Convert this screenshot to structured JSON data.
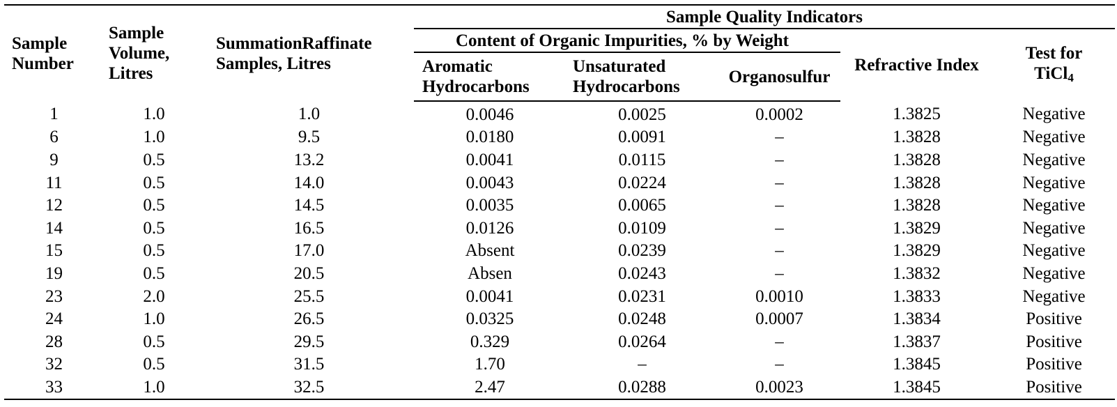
{
  "table": {
    "headers": {
      "sample_number": "Sample Number",
      "sample_volume": "Sample Volume, Litres",
      "summation": "SummationRaffinate Samples, Litres",
      "quality_indicators": "Sample Quality Indicators",
      "organic_impurities": "Content of Organic Impurities, % by Weight",
      "aromatic": "Aromatic Hydrocarbons",
      "unsaturated": "Unsaturated Hydrocarbons",
      "organosulfur": "Organosulfur",
      "refractive": "Refractive Index",
      "test_prefix": "Test for",
      "test_chem": "TiCl",
      "test_sub": "4"
    },
    "rows": [
      {
        "num": "1",
        "vol": "1.0",
        "sum": "1.0",
        "aro": "0.0046",
        "uns": "0.0025",
        "org": "0.0002",
        "ref": "1.3825",
        "test": "Negative"
      },
      {
        "num": "6",
        "vol": "1.0",
        "sum": "9.5",
        "aro": "0.0180",
        "uns": "0.0091",
        "org": "–",
        "ref": "1.3828",
        "test": "Negative"
      },
      {
        "num": "9",
        "vol": "0.5",
        "sum": "13.2",
        "aro": "0.0041",
        "uns": "0.0115",
        "org": "–",
        "ref": "1.3828",
        "test": "Negative"
      },
      {
        "num": "11",
        "vol": "0.5",
        "sum": "14.0",
        "aro": "0.0043",
        "uns": "0.0224",
        "org": "–",
        "ref": "1.3828",
        "test": "Negative"
      },
      {
        "num": "12",
        "vol": "0.5",
        "sum": "14.5",
        "aro": "0.0035",
        "uns": "0.0065",
        "org": "–",
        "ref": "1.3828",
        "test": "Negative"
      },
      {
        "num": "14",
        "vol": "0.5",
        "sum": "16.5",
        "aro": "0.0126",
        "uns": "0.0109",
        "org": "–",
        "ref": "1.3829",
        "test": "Negative"
      },
      {
        "num": "15",
        "vol": "0.5",
        "sum": "17.0",
        "aro": "Absent",
        "uns": "0.0239",
        "org": "–",
        "ref": "1.3829",
        "test": "Negative"
      },
      {
        "num": "19",
        "vol": "0.5",
        "sum": "20.5",
        "aro": "Absen",
        "uns": "0.0243",
        "org": "–",
        "ref": "1.3832",
        "test": "Negative"
      },
      {
        "num": "23",
        "vol": "2.0",
        "sum": "25.5",
        "aro": "0.0041",
        "uns": "0.0231",
        "org": "0.0010",
        "ref": "1.3833",
        "test": "Negative"
      },
      {
        "num": "24",
        "vol": "1.0",
        "sum": "26.5",
        "aro": "0.0325",
        "uns": "0.0248",
        "org": "0.0007",
        "ref": "1.3834",
        "test": "Positive"
      },
      {
        "num": "28",
        "vol": "0.5",
        "sum": "29.5",
        "aro": "0.329",
        "uns": "0.0264",
        "org": "–",
        "ref": "1.3837",
        "test": "Positive"
      },
      {
        "num": "32",
        "vol": "0.5",
        "sum": "31.5",
        "aro": "1.70",
        "uns": "–",
        "org": "–",
        "ref": "1.3845",
        "test": "Positive"
      },
      {
        "num": "33",
        "vol": "1.0",
        "sum": "32.5",
        "aro": "2.47",
        "uns": "0.0288",
        "org": "0.0023",
        "ref": "1.3845",
        "test": "Positive"
      }
    ]
  }
}
